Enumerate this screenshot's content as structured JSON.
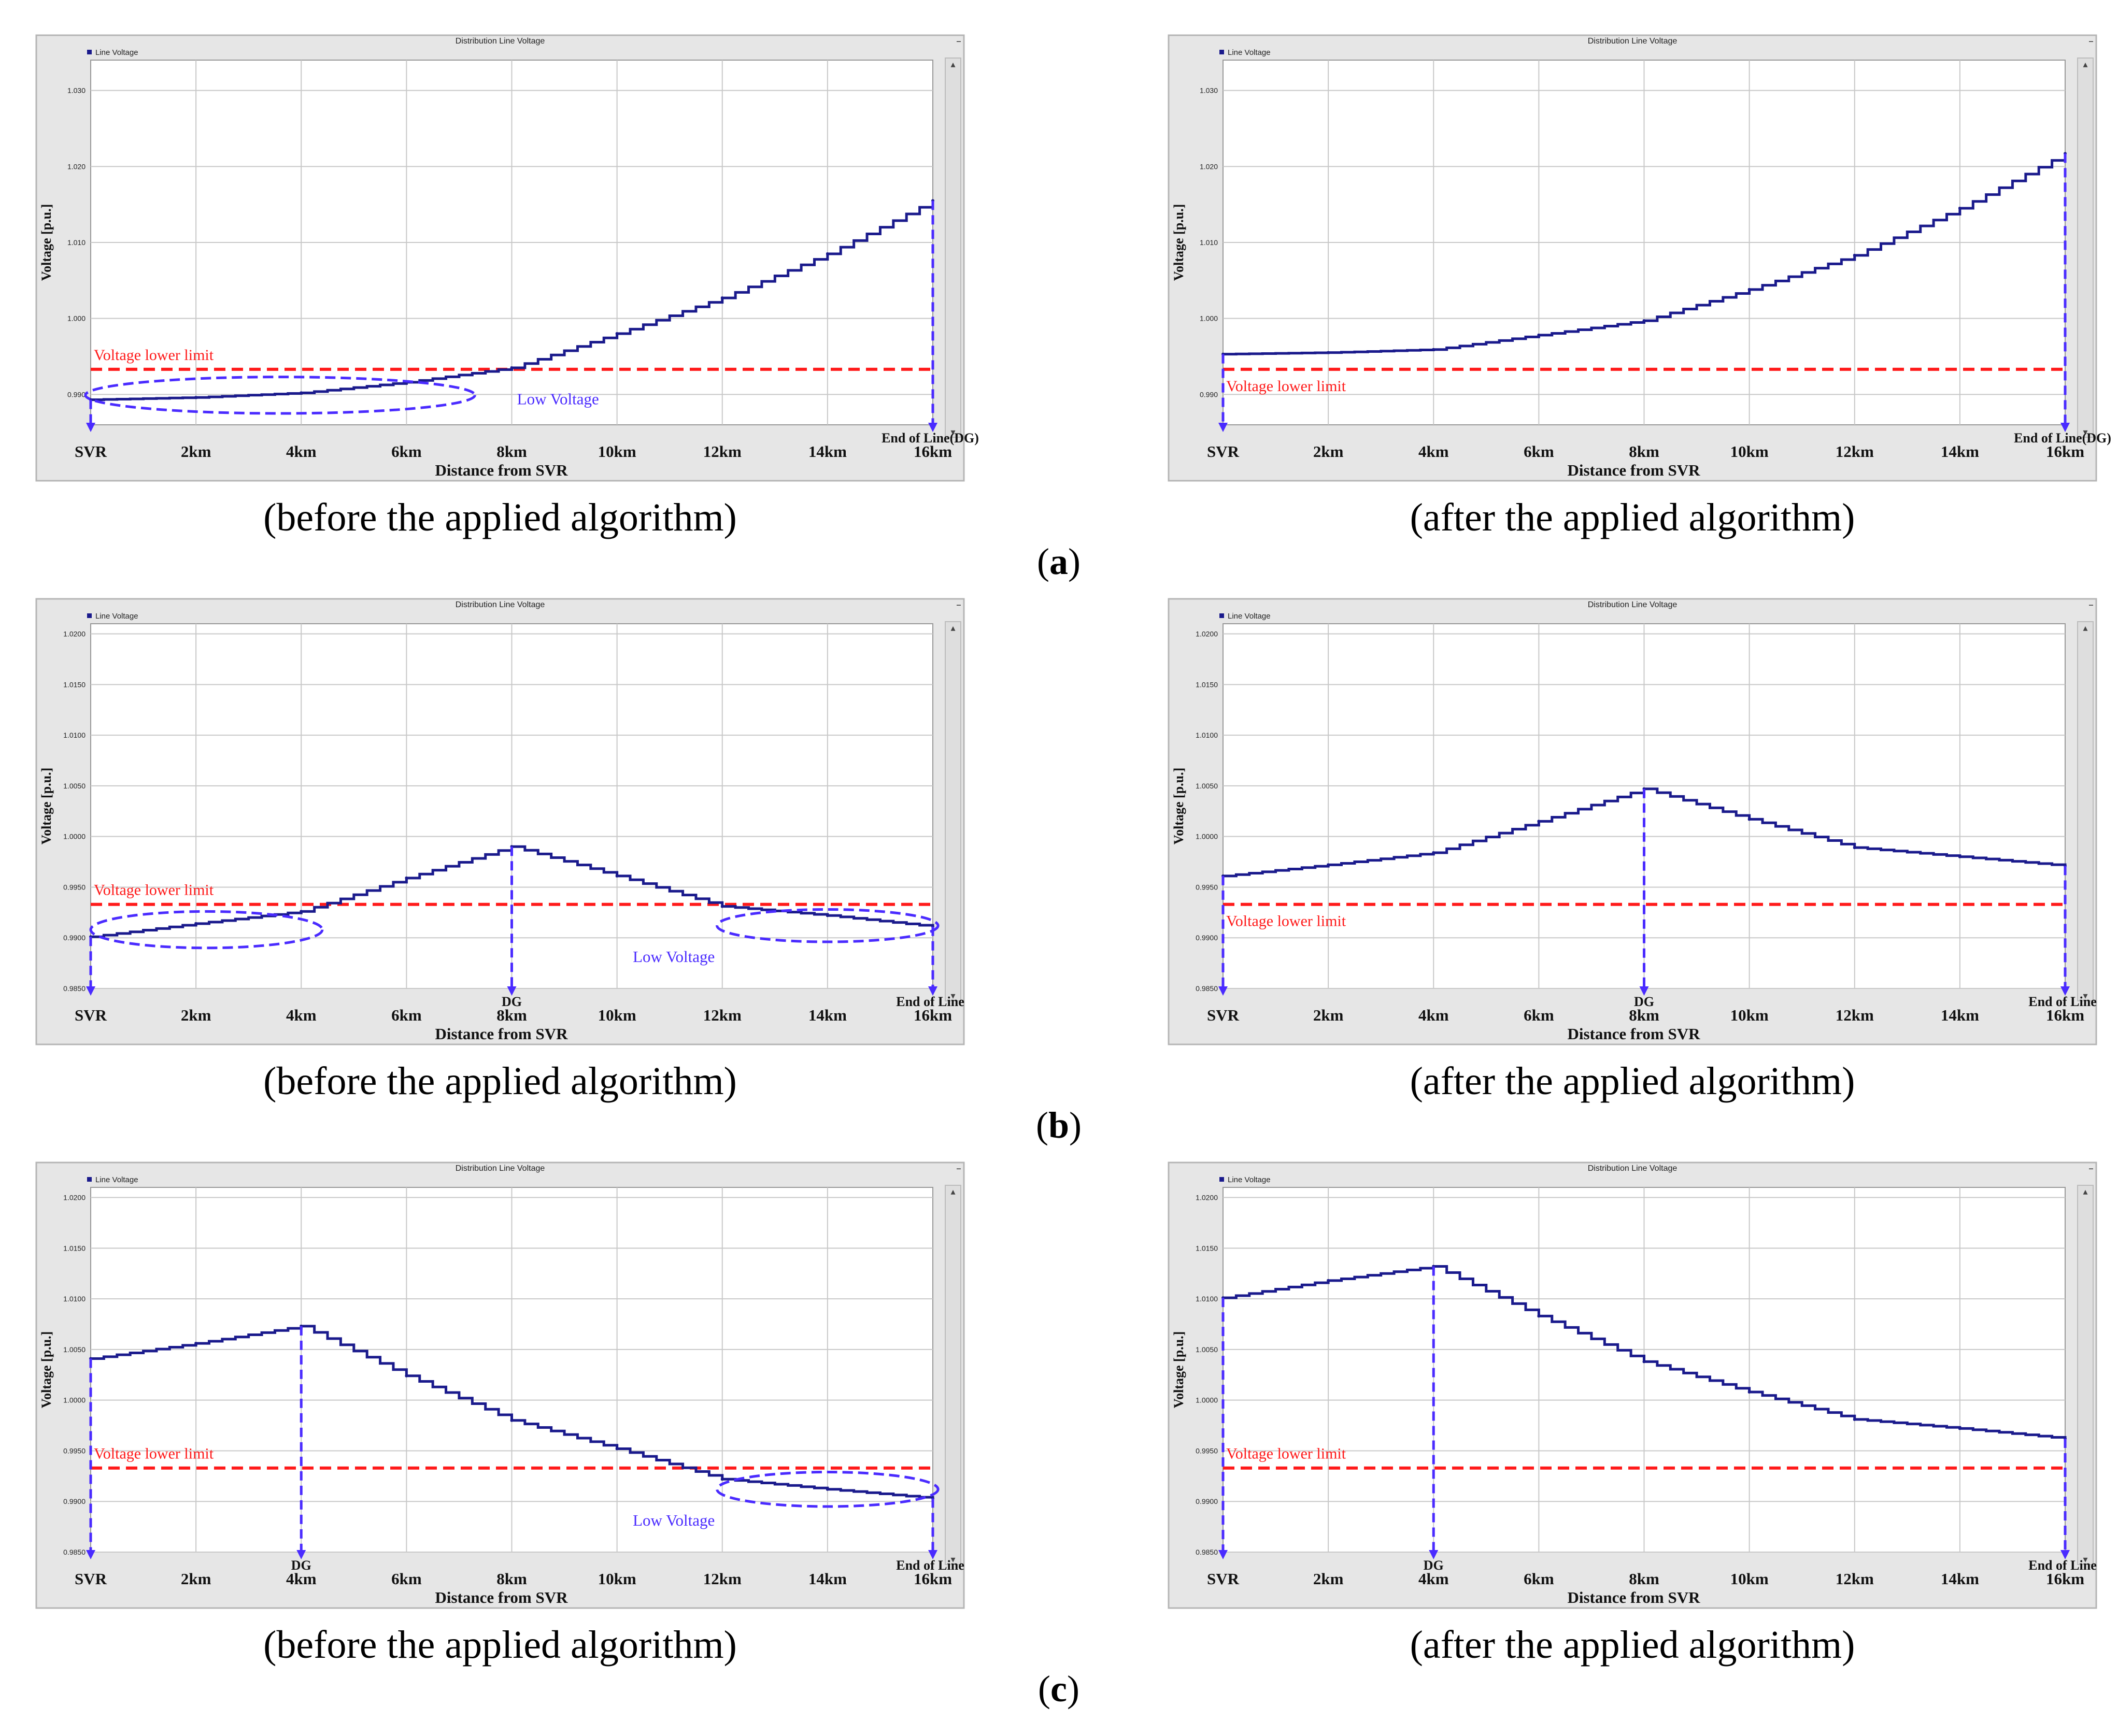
{
  "colors": {
    "line": "#1a1a8c",
    "limit": "#ff1a1a",
    "marker": "#4a2bff",
    "frame": "#e6e6e6",
    "grid": "#c8c8c8"
  },
  "common": {
    "window_title": "Distribution Line Voltage",
    "legend": "Line Voltage",
    "ylabel": "Voltage [p.u.]",
    "xlabel": "Distance from SVR",
    "limit_label": "Voltage lower limit",
    "low_voltage_label": "Low Voltage",
    "scroll_up": "▴",
    "scroll_down": "▾",
    "minimize": "–"
  },
  "row_labels": [
    "a",
    "b",
    "c"
  ],
  "chart_data": [
    {
      "id": "a-before",
      "row": "a",
      "type": "line",
      "caption": "(before the applied algorithm)",
      "ylim": [
        0.986,
        1.034
      ],
      "yticks": [
        "1.030",
        "1.020",
        "1.010",
        "1.000",
        "0.990"
      ],
      "ytick_values": [
        1.03,
        1.02,
        1.01,
        1.0,
        0.99
      ],
      "xticks": [
        {
          "x": 0,
          "label": "SVR"
        },
        {
          "x": 2,
          "label": "2km"
        },
        {
          "x": 4,
          "label": "4km"
        },
        {
          "x": 6,
          "label": "6km"
        },
        {
          "x": 8,
          "label": "8km"
        },
        {
          "x": 10,
          "label": "10km"
        },
        {
          "x": 12,
          "label": "12km"
        },
        {
          "x": 14,
          "label": "14km"
        },
        {
          "x": 16,
          "label": "16km"
        }
      ],
      "extra_labels": [
        {
          "x": 16,
          "text": "End of Line(DG)"
        }
      ],
      "limit": 0.9933,
      "series": [
        {
          "name": "Line Voltage",
          "x": [
            0,
            2,
            4,
            6,
            8,
            10,
            12,
            14,
            16
          ],
          "y": [
            0.9893,
            0.9896,
            0.9902,
            0.9916,
            0.9935,
            0.998,
            1.0027,
            1.0085,
            1.0155
          ]
        }
      ],
      "markers": [
        0,
        16
      ],
      "ellipses": [
        {
          "cx": 3.6,
          "cy": 0.9899,
          "rx": 3.7,
          "ry": 0.0024
        }
      ],
      "low_label_pos": [
        8.1,
        0.9887
      ]
    },
    {
      "id": "a-after",
      "row": "a",
      "type": "line",
      "caption": "(after the applied algorithm)",
      "ylim": [
        0.986,
        1.034
      ],
      "yticks": [
        "1.030",
        "1.020",
        "1.010",
        "1.000",
        "0.990"
      ],
      "ytick_values": [
        1.03,
        1.02,
        1.01,
        1.0,
        0.99
      ],
      "xticks": [
        {
          "x": 0,
          "label": "SVR"
        },
        {
          "x": 2,
          "label": "2km"
        },
        {
          "x": 4,
          "label": "4km"
        },
        {
          "x": 6,
          "label": "6km"
        },
        {
          "x": 8,
          "label": "8km"
        },
        {
          "x": 10,
          "label": "10km"
        },
        {
          "x": 12,
          "label": "12km"
        },
        {
          "x": 14,
          "label": "14km"
        },
        {
          "x": 16,
          "label": "16km"
        }
      ],
      "extra_labels": [
        {
          "x": 16,
          "text": "End of Line(DG)"
        }
      ],
      "limit": 0.9933,
      "limit_label_below": true,
      "series": [
        {
          "name": "Line Voltage",
          "x": [
            0,
            2,
            4,
            6,
            8,
            10,
            12,
            14,
            16
          ],
          "y": [
            0.9953,
            0.9955,
            0.9959,
            0.9978,
            0.9997,
            1.0038,
            1.0083,
            1.0145,
            1.0217
          ]
        }
      ],
      "markers": [
        0,
        16
      ],
      "ellipses": []
    },
    {
      "id": "b-before",
      "row": "b",
      "type": "line",
      "caption": "(before the applied algorithm)",
      "ylim": [
        0.985,
        1.021
      ],
      "yticks": [
        "1.0200",
        "1.0150",
        "1.0100",
        "1.0050",
        "1.0000",
        "0.9950",
        "0.9900",
        "0.9850"
      ],
      "ytick_values": [
        1.02,
        1.015,
        1.01,
        1.005,
        1.0,
        0.995,
        0.99,
        0.985
      ],
      "xticks": [
        {
          "x": 0,
          "label": "SVR"
        },
        {
          "x": 2,
          "label": "2km"
        },
        {
          "x": 4,
          "label": "4km"
        },
        {
          "x": 6,
          "label": "6km"
        },
        {
          "x": 8,
          "label": "8km"
        },
        {
          "x": 10,
          "label": "10km"
        },
        {
          "x": 12,
          "label": "12km"
        },
        {
          "x": 14,
          "label": "14km"
        },
        {
          "x": 16,
          "label": "16km"
        }
      ],
      "extra_labels": [
        {
          "x": 8,
          "text": "DG"
        },
        {
          "x": 16,
          "text": "End of Line"
        }
      ],
      "limit": 0.9933,
      "series": [
        {
          "name": "Line Voltage",
          "x": [
            0,
            2,
            4,
            6,
            8,
            10,
            12,
            14,
            16
          ],
          "y": [
            0.9901,
            0.9914,
            0.9926,
            0.9959,
            0.999,
            0.9961,
            0.9931,
            0.9922,
            0.9911
          ]
        }
      ],
      "markers": [
        0,
        8,
        16
      ],
      "ellipses": [
        {
          "cx": 2.2,
          "cy": 0.9908,
          "rx": 2.2,
          "ry": 0.0018
        },
        {
          "cx": 14.0,
          "cy": 0.9912,
          "rx": 2.1,
          "ry": 0.0016
        }
      ],
      "low_label_pos": [
        10.3,
        0.9876
      ]
    },
    {
      "id": "b-after",
      "row": "b",
      "type": "line",
      "caption": "(after the applied algorithm)",
      "ylim": [
        0.985,
        1.021
      ],
      "yticks": [
        "1.0200",
        "1.0150",
        "1.0100",
        "1.0050",
        "1.0000",
        "0.9950",
        "0.9900",
        "0.9850"
      ],
      "ytick_values": [
        1.02,
        1.015,
        1.01,
        1.005,
        1.0,
        0.995,
        0.99,
        0.985
      ],
      "xticks": [
        {
          "x": 0,
          "label": "SVR"
        },
        {
          "x": 2,
          "label": "2km"
        },
        {
          "x": 4,
          "label": "4km"
        },
        {
          "x": 6,
          "label": "6km"
        },
        {
          "x": 8,
          "label": "8km"
        },
        {
          "x": 10,
          "label": "10km"
        },
        {
          "x": 12,
          "label": "12km"
        },
        {
          "x": 14,
          "label": "14km"
        },
        {
          "x": 16,
          "label": "16km"
        }
      ],
      "extra_labels": [
        {
          "x": 8,
          "text": "DG"
        },
        {
          "x": 16,
          "text": "End of Line"
        }
      ],
      "limit": 0.9933,
      "limit_label_below": true,
      "series": [
        {
          "name": "Line Voltage",
          "x": [
            0,
            2,
            4,
            6,
            8,
            10,
            12,
            14,
            16
          ],
          "y": [
            0.9961,
            0.9972,
            0.9984,
            1.0015,
            1.0047,
            1.0017,
            0.9989,
            0.998,
            0.9971
          ]
        }
      ],
      "markers": [
        0,
        8,
        16
      ],
      "ellipses": []
    },
    {
      "id": "c-before",
      "row": "c",
      "type": "line",
      "caption": "(before the applied algorithm)",
      "ylim": [
        0.985,
        1.021
      ],
      "yticks": [
        "1.0200",
        "1.0150",
        "1.0100",
        "1.0050",
        "1.0000",
        "0.9950",
        "0.9900",
        "0.9850"
      ],
      "ytick_values": [
        1.02,
        1.015,
        1.01,
        1.005,
        1.0,
        0.995,
        0.99,
        0.985
      ],
      "xticks": [
        {
          "x": 0,
          "label": "SVR"
        },
        {
          "x": 2,
          "label": "2km"
        },
        {
          "x": 4,
          "label": "4km"
        },
        {
          "x": 6,
          "label": "6km"
        },
        {
          "x": 8,
          "label": "8km"
        },
        {
          "x": 10,
          "label": "10km"
        },
        {
          "x": 12,
          "label": "12km"
        },
        {
          "x": 14,
          "label": "14km"
        },
        {
          "x": 16,
          "label": "16km"
        }
      ],
      "extra_labels": [
        {
          "x": 4,
          "text": "DG"
        },
        {
          "x": 16,
          "text": "End of Line"
        }
      ],
      "limit": 0.9933,
      "series": [
        {
          "name": "Line Voltage",
          "x": [
            0,
            2,
            4,
            6,
            8,
            10,
            12,
            14,
            16
          ],
          "y": [
            1.0041,
            1.0056,
            1.0073,
            1.0024,
            0.998,
            0.9952,
            0.9922,
            0.9912,
            0.9903
          ]
        }
      ],
      "markers": [
        0,
        4,
        16
      ],
      "ellipses": [
        {
          "cx": 14.0,
          "cy": 0.9912,
          "rx": 2.1,
          "ry": 0.0017
        }
      ],
      "low_label_pos": [
        10.3,
        0.9876
      ]
    },
    {
      "id": "c-after",
      "row": "c",
      "type": "line",
      "caption": "(after the applied algorithm)",
      "ylim": [
        0.985,
        1.021
      ],
      "yticks": [
        "1.0200",
        "1.0150",
        "1.0100",
        "1.0050",
        "1.0000",
        "0.9950",
        "0.9900",
        "0.9850"
      ],
      "ytick_values": [
        1.02,
        1.015,
        1.01,
        1.005,
        1.0,
        0.995,
        0.99,
        0.985
      ],
      "xticks": [
        {
          "x": 0,
          "label": "SVR"
        },
        {
          "x": 2,
          "label": "2km"
        },
        {
          "x": 4,
          "label": "4km"
        },
        {
          "x": 6,
          "label": "6km"
        },
        {
          "x": 8,
          "label": "8km"
        },
        {
          "x": 10,
          "label": "10km"
        },
        {
          "x": 12,
          "label": "12km"
        },
        {
          "x": 14,
          "label": "14km"
        },
        {
          "x": 16,
          "label": "16km"
        }
      ],
      "extra_labels": [
        {
          "x": 4,
          "text": "DG"
        },
        {
          "x": 16,
          "text": "End of Line"
        }
      ],
      "limit": 0.9933,
      "series": [
        {
          "name": "Line Voltage",
          "x": [
            0,
            2,
            4,
            6,
            8,
            10,
            12,
            14,
            16
          ],
          "y": [
            1.0101,
            1.0118,
            1.0132,
            1.0083,
            1.0038,
            1.0008,
            0.9981,
            0.9972,
            0.9962
          ]
        }
      ],
      "markers": [
        0,
        4,
        16
      ],
      "ellipses": []
    }
  ]
}
